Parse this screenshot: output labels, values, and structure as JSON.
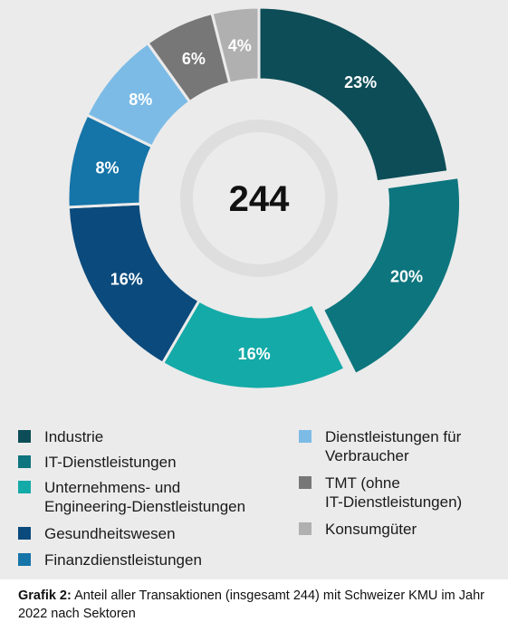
{
  "chart_data": {
    "type": "pie",
    "center_label": "244",
    "categories": [
      "Industrie",
      "IT-Dienstleistungen",
      "Unternehmens- und\nEngineering-Dienstleistungen",
      "Gesundheitswesen",
      "Finanzdienstleistungen",
      "Dienstleistungen für\nVerbraucher",
      "TMT (ohne\nIT-Dienstleistungen)",
      "Konsumgüter"
    ],
    "values": [
      23,
      20,
      16,
      16,
      8,
      8,
      6,
      4
    ],
    "value_labels": [
      "23%",
      "20%",
      "16%",
      "16%",
      "8%",
      "8%",
      "6%",
      "4%"
    ],
    "colors": [
      "#0d4d57",
      "#0d757d",
      "#14aaa8",
      "#0b4a7c",
      "#1574a8",
      "#7cbbe6",
      "#777777",
      "#b0b0b0"
    ],
    "exploded": [
      false,
      true,
      false,
      false,
      false,
      false,
      false,
      false
    ],
    "legend_position": "bottom"
  },
  "caption": {
    "label": "Grafik 2:",
    "text": "Anteil aller Transaktionen (insgesamt 244) mit Schweizer KMU im Jahr 2022 nach Sektoren"
  }
}
